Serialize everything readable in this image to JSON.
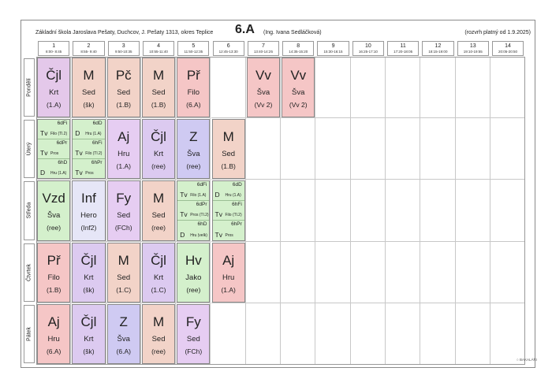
{
  "header": {
    "school": "Základní škola Jaroslava Pešaty, Duchcov, J. Pešaty 1313, okres Teplice",
    "class_name": "6.A",
    "teacher": "(Ing. Ivana Sedláčková)",
    "valid_from": "(rozvrh platný od 1.9.2025)"
  },
  "periods": [
    {
      "num": "1",
      "time": "8:00- 8:45"
    },
    {
      "num": "2",
      "time": "8:55- 9:40"
    },
    {
      "num": "3",
      "time": "9:50-10:35"
    },
    {
      "num": "4",
      "time": "10:55-11:40"
    },
    {
      "num": "5",
      "time": "11:50-12:35"
    },
    {
      "num": "6",
      "time": "12:45-13:30"
    },
    {
      "num": "7",
      "time": "13:40-14:25"
    },
    {
      "num": "8",
      "time": "14:35-15:20"
    },
    {
      "num": "9",
      "time": "15:30-16:15"
    },
    {
      "num": "10",
      "time": "16:25-17:10"
    },
    {
      "num": "11",
      "time": "17:20-18:05"
    },
    {
      "num": "12",
      "time": "18:15-19:00"
    },
    {
      "num": "13",
      "time": "19:10-19:55"
    },
    {
      "num": "14",
      "time": "20:05-20:50"
    }
  ],
  "days": [
    "Pondělí",
    "Úterý",
    "Středa",
    "Čtvrtek",
    "Pátek"
  ],
  "colors": {
    "czech": "#d9c8e8",
    "math": "#f2d3c8",
    "pc": "#f2d3c8",
    "physics": "#f5c6c6",
    "pe": "#f5c6c6",
    "english": "#e0c8f0",
    "zem": "#cfcaf2",
    "inf": "#e6e6f7",
    "geo": "#f2d3c8",
    "music": "#d4f0cc",
    "split": "#d4f0cc"
  },
  "lessons": [
    {
      "day": 0,
      "period": 0,
      "subject": "Čjl",
      "teacher": "Krt",
      "room": "(1.A)",
      "color": "#e4c8ea"
    },
    {
      "day": 0,
      "period": 1,
      "subject": "M",
      "teacher": "Sed",
      "room": "(šk)",
      "color": "#f2d3c8"
    },
    {
      "day": 0,
      "period": 2,
      "subject": "Pč",
      "teacher": "Sed",
      "room": "(1.B)",
      "color": "#f2d3c8"
    },
    {
      "day": 0,
      "period": 3,
      "subject": "M",
      "teacher": "Sed",
      "room": "(1.B)",
      "color": "#f2d3c8"
    },
    {
      "day": 0,
      "period": 4,
      "subject": "Př",
      "teacher": "Filo",
      "room": "(6.A)",
      "color": "#f5c6c6"
    },
    {
      "day": 0,
      "period": 6,
      "subject": "Vv",
      "teacher": "Šva",
      "room": "(Vv 2)",
      "color": "#f5c6c6"
    },
    {
      "day": 0,
      "period": 7,
      "subject": "Vv",
      "teacher": "Šva",
      "room": "(Vv 2)",
      "color": "#f5c6c6"
    },
    {
      "day": 1,
      "period": 2,
      "subject": "Aj",
      "teacher": "Hru",
      "room": "(1.A)",
      "color": "#e6cdf2"
    },
    {
      "day": 1,
      "period": 3,
      "subject": "Čjl",
      "teacher": "Krt",
      "room": "(ree)",
      "color": "#dccaf0"
    },
    {
      "day": 1,
      "period": 4,
      "subject": "Z",
      "teacher": "Šva",
      "room": "(ree)",
      "color": "#cfcaf2"
    },
    {
      "day": 1,
      "period": 5,
      "subject": "M",
      "teacher": "Sed",
      "room": "(1.B)",
      "color": "#f2d3c8"
    },
    {
      "day": 2,
      "period": 0,
      "subject": "Vzd",
      "teacher": "Šva",
      "room": "(ree)",
      "color": "#d4f0cc"
    },
    {
      "day": 2,
      "period": 1,
      "subject": "Inf",
      "teacher": "Hero",
      "room": "(Inf2)",
      "color": "#e6e6f7"
    },
    {
      "day": 2,
      "period": 2,
      "subject": "Fy",
      "teacher": "Sed",
      "room": "(FCh)",
      "color": "#e6cdf2"
    },
    {
      "day": 2,
      "period": 3,
      "subject": "M",
      "teacher": "Sed",
      "room": "(ree)",
      "color": "#f2d3c8"
    },
    {
      "day": 3,
      "period": 0,
      "subject": "Př",
      "teacher": "Filo",
      "room": "(1.B)",
      "color": "#f5c6c6"
    },
    {
      "day": 3,
      "period": 1,
      "subject": "Čjl",
      "teacher": "Krt",
      "room": "(šk)",
      "color": "#dccaf0"
    },
    {
      "day": 3,
      "period": 2,
      "subject": "M",
      "teacher": "Sed",
      "room": "(1.C)",
      "color": "#f2d3c8"
    },
    {
      "day": 3,
      "period": 3,
      "subject": "Čjl",
      "teacher": "Krt",
      "room": "(1.C)",
      "color": "#dccaf0"
    },
    {
      "day": 3,
      "period": 4,
      "subject": "Hv",
      "teacher": "Jako",
      "room": "(ree)",
      "color": "#d4f0cc"
    },
    {
      "day": 3,
      "period": 5,
      "subject": "Aj",
      "teacher": "Hru",
      "room": "(1.A)",
      "color": "#f5c6c6"
    },
    {
      "day": 4,
      "period": 0,
      "subject": "Aj",
      "teacher": "Hru",
      "room": "(6.A)",
      "color": "#f5c6c6"
    },
    {
      "day": 4,
      "period": 1,
      "subject": "Čjl",
      "teacher": "Krt",
      "room": "(šk)",
      "color": "#dccaf0"
    },
    {
      "day": 4,
      "period": 2,
      "subject": "Z",
      "teacher": "Šva",
      "room": "(6.A)",
      "color": "#cfcaf2"
    },
    {
      "day": 4,
      "period": 3,
      "subject": "M",
      "teacher": "Sed",
      "room": "(ree)",
      "color": "#f2d3c8"
    },
    {
      "day": 4,
      "period": 4,
      "subject": "Fy",
      "teacher": "Sed",
      "room": "(FCh)",
      "color": "#e6cdf2"
    }
  ],
  "splits": [
    {
      "day": 1,
      "period": 0,
      "parts": [
        {
          "group": "6dFi",
          "subject": "Tv",
          "teacher": "Filo (Tl.2)"
        },
        {
          "group": "6dPr",
          "subject": "Tv",
          "teacher": "Pros"
        },
        {
          "group": "6hD",
          "subject": "D",
          "teacher": "Hru (1.A)"
        }
      ]
    },
    {
      "day": 1,
      "period": 1,
      "parts": [
        {
          "group": "6dD",
          "subject": "D",
          "teacher": "Hru (1.A)"
        },
        {
          "group": "6hFi",
          "subject": "Tv",
          "teacher": "Filo (Tl.2)"
        },
        {
          "group": "6hPr",
          "subject": "Tv",
          "teacher": "Pros"
        }
      ]
    },
    {
      "day": 2,
      "period": 4,
      "parts": [
        {
          "group": "6dFi",
          "subject": "Tv",
          "teacher": "Filo (1.A)"
        },
        {
          "group": "6dPr",
          "subject": "Tv",
          "teacher": "Pros (Tl.2)"
        },
        {
          "group": "6hD",
          "subject": "D",
          "teacher": "Hru (velk)"
        }
      ]
    },
    {
      "day": 2,
      "period": 5,
      "parts": [
        {
          "group": "6dD",
          "subject": "D",
          "teacher": "Hru (1.A)"
        },
        {
          "group": "6hFi",
          "subject": "Tv",
          "teacher": "Filo (Tl.2)"
        },
        {
          "group": "6hPr",
          "subject": "Tv",
          "teacher": "Pros"
        }
      ]
    }
  ],
  "footer": {
    "logo": "○ BAKALÁŘI"
  }
}
